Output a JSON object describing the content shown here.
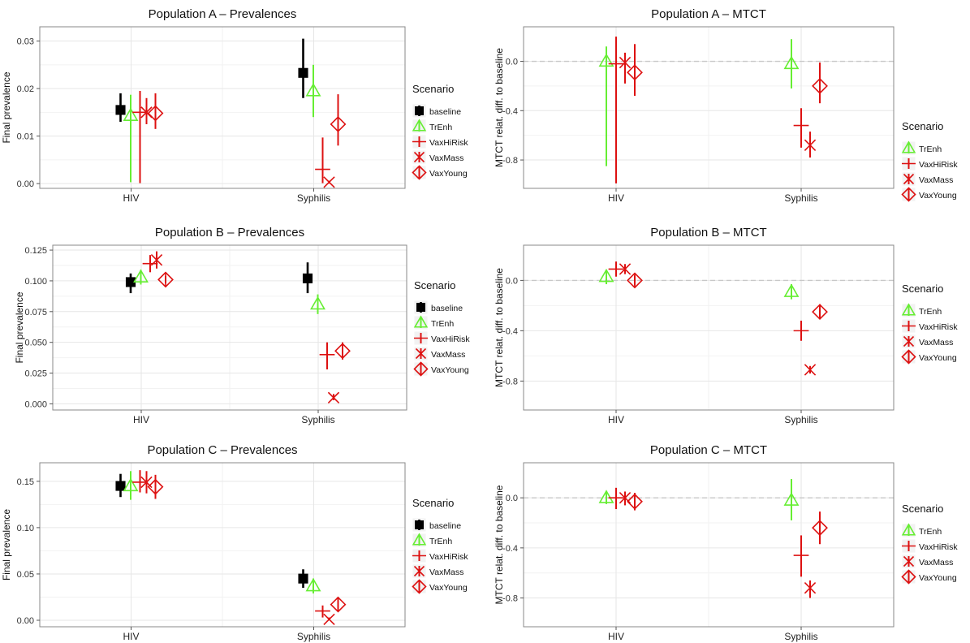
{
  "colors": {
    "baseline": "#000000",
    "TrEnh": "#66ee33",
    "VaxHiRisk": "#dd1111",
    "VaxMass": "#dd1111",
    "VaxYoung": "#dd1111",
    "grid_major": "#e6e6e6",
    "grid_minor": "#f2f2f2",
    "panel_border": "#888888",
    "ref_line": "#c8c8c8"
  },
  "chart_data": [
    {
      "type": "scatter",
      "title": "Population A  – Prevalences",
      "ylabel": "Final prevalence",
      "categories": [
        "HIV",
        "Syphilis"
      ],
      "ylim": [
        -0.001,
        0.033
      ],
      "yticks": [
        0.0,
        0.01,
        0.02,
        0.03
      ],
      "ytick_labels": [
        "0.00",
        "0.01",
        "0.02",
        "0.03"
      ],
      "ref_line": null,
      "legend": {
        "title": "Scenario",
        "items": [
          "baseline",
          "TrEnh",
          "VaxHiRisk",
          "VaxMass",
          "VaxYoung"
        ],
        "placement": "right"
      },
      "series": [
        {
          "name": "baseline",
          "values": [
            {
              "x": "HIV",
              "y": 0.0155,
              "lo": 0.013,
              "hi": 0.019
            },
            {
              "x": "Syphilis",
              "y": 0.0233,
              "lo": 0.018,
              "hi": 0.0305
            }
          ]
        },
        {
          "name": "TrEnh",
          "values": [
            {
              "x": "HIV",
              "y": 0.0143,
              "lo": 0.0003,
              "hi": 0.0187
            },
            {
              "x": "Syphilis",
              "y": 0.0195,
              "lo": 0.014,
              "hi": 0.025
            }
          ]
        },
        {
          "name": "VaxHiRisk",
          "values": [
            {
              "x": "HIV",
              "y": 0.015,
              "lo": 0.0001,
              "hi": 0.0195
            },
            {
              "x": "Syphilis",
              "y": 0.003,
              "lo": 0.0001,
              "hi": 0.0097
            }
          ]
        },
        {
          "name": "VaxMass",
          "values": [
            {
              "x": "HIV",
              "y": 0.015,
              "lo": 0.0125,
              "hi": 0.018
            },
            {
              "x": "Syphilis",
              "y": 0.0003,
              "lo": 0.0,
              "hi": 0.0006
            }
          ]
        },
        {
          "name": "VaxYoung",
          "values": [
            {
              "x": "HIV",
              "y": 0.0148,
              "lo": 0.0115,
              "hi": 0.019
            },
            {
              "x": "Syphilis",
              "y": 0.0125,
              "lo": 0.008,
              "hi": 0.0188
            }
          ]
        }
      ]
    },
    {
      "type": "scatter",
      "title": "Population A  – MTCT",
      "ylabel": "MTCT relat. diff. to baseline",
      "categories": [
        "HIV",
        "Syphilis"
      ],
      "ylim": [
        -1.03,
        0.28
      ],
      "yticks": [
        0.0,
        -0.4,
        -0.8
      ],
      "ytick_labels": [
        "0.0",
        "-0.4",
        "-0.8"
      ],
      "ref_line": 0.0,
      "legend": {
        "title": "Scenario",
        "items": [
          "TrEnh",
          "VaxHiRisk",
          "VaxMass",
          "VaxYoung"
        ],
        "placement": "right"
      },
      "series": [
        {
          "name": "TrEnh",
          "values": [
            {
              "x": "HIV",
              "y": 0.0,
              "lo": -0.85,
              "hi": 0.12
            },
            {
              "x": "Syphilis",
              "y": -0.02,
              "lo": -0.22,
              "hi": 0.18
            }
          ]
        },
        {
          "name": "VaxHiRisk",
          "values": [
            {
              "x": "HIV",
              "y": -0.02,
              "lo": -0.99,
              "hi": 0.2
            },
            {
              "x": "Syphilis",
              "y": -0.52,
              "lo": -0.7,
              "hi": -0.38
            }
          ]
        },
        {
          "name": "VaxMass",
          "values": [
            {
              "x": "HIV",
              "y": -0.01,
              "lo": -0.18,
              "hi": 0.07
            },
            {
              "x": "Syphilis",
              "y": -0.68,
              "lo": -0.78,
              "hi": -0.57
            }
          ]
        },
        {
          "name": "VaxYoung",
          "values": [
            {
              "x": "HIV",
              "y": -0.09,
              "lo": -0.28,
              "hi": 0.14
            },
            {
              "x": "Syphilis",
              "y": -0.2,
              "lo": -0.34,
              "hi": -0.01
            }
          ]
        }
      ]
    },
    {
      "type": "scatter",
      "title": "Population B  – Prevalences",
      "ylabel": "Final prevalence",
      "categories": [
        "HIV",
        "Syphilis"
      ],
      "ylim": [
        -0.005,
        0.129
      ],
      "yticks": [
        0.0,
        0.025,
        0.05,
        0.075,
        0.1,
        0.125
      ],
      "ytick_labels": [
        "0.000",
        "0.025",
        "0.050",
        "0.075",
        "0.100",
        "0.125"
      ],
      "ref_line": null,
      "legend": {
        "title": "Scenario",
        "items": [
          "baseline",
          "TrEnh",
          "VaxHiRisk",
          "VaxMass",
          "VaxYoung"
        ],
        "placement": "right"
      },
      "series": [
        {
          "name": "baseline",
          "values": [
            {
              "x": "HIV",
              "y": 0.099,
              "lo": 0.09,
              "hi": 0.106
            },
            {
              "x": "Syphilis",
              "y": 0.102,
              "lo": 0.09,
              "hi": 0.115
            }
          ]
        },
        {
          "name": "TrEnh",
          "values": [
            {
              "x": "HIV",
              "y": 0.103,
              "lo": 0.097,
              "hi": 0.109
            },
            {
              "x": "Syphilis",
              "y": 0.081,
              "lo": 0.073,
              "hi": 0.089
            }
          ]
        },
        {
          "name": "VaxHiRisk",
          "values": [
            {
              "x": "HIV",
              "y": 0.114,
              "lo": 0.107,
              "hi": 0.121
            },
            {
              "x": "Syphilis",
              "y": 0.04,
              "lo": 0.028,
              "hi": 0.05
            }
          ]
        },
        {
          "name": "VaxMass",
          "values": [
            {
              "x": "HIV",
              "y": 0.117,
              "lo": 0.11,
              "hi": 0.124
            },
            {
              "x": "Syphilis",
              "y": 0.005,
              "lo": 0.003,
              "hi": 0.008
            }
          ]
        },
        {
          "name": "VaxYoung",
          "values": [
            {
              "x": "HIV",
              "y": 0.101,
              "lo": 0.098,
              "hi": 0.104
            },
            {
              "x": "Syphilis",
              "y": 0.043,
              "lo": 0.036,
              "hi": 0.05
            }
          ]
        }
      ]
    },
    {
      "type": "scatter",
      "title": "Population B  – MTCT",
      "ylabel": "MTCT relat. diff. to baseline",
      "categories": [
        "HIV",
        "Syphilis"
      ],
      "ylim": [
        -1.03,
        0.28
      ],
      "yticks": [
        0.0,
        -0.4,
        -0.8
      ],
      "ytick_labels": [
        "0.0",
        "-0.4",
        "-0.8"
      ],
      "ref_line": 0.0,
      "legend": {
        "title": "Scenario",
        "items": [
          "TrEnh",
          "VaxHiRisk",
          "VaxMass",
          "VaxYoung"
        ],
        "placement": "right"
      },
      "series": [
        {
          "name": "TrEnh",
          "values": [
            {
              "x": "HIV",
              "y": 0.03,
              "lo": -0.03,
              "hi": 0.08
            },
            {
              "x": "Syphilis",
              "y": -0.09,
              "lo": -0.15,
              "hi": -0.03
            }
          ]
        },
        {
          "name": "VaxHiRisk",
          "values": [
            {
              "x": "HIV",
              "y": 0.09,
              "lo": 0.03,
              "hi": 0.15
            },
            {
              "x": "Syphilis",
              "y": -0.4,
              "lo": -0.48,
              "hi": -0.32
            }
          ]
        },
        {
          "name": "VaxMass",
          "values": [
            {
              "x": "HIV",
              "y": 0.09,
              "lo": 0.05,
              "hi": 0.13
            },
            {
              "x": "Syphilis",
              "y": -0.71,
              "lo": -0.74,
              "hi": -0.68
            }
          ]
        },
        {
          "name": "VaxYoung",
          "values": [
            {
              "x": "HIV",
              "y": 0.0,
              "lo": -0.04,
              "hi": 0.04
            },
            {
              "x": "Syphilis",
              "y": -0.25,
              "lo": -0.3,
              "hi": -0.19
            }
          ]
        }
      ]
    },
    {
      "type": "scatter",
      "title": "Population C  – Prevalences",
      "ylabel": "Final prevalence",
      "categories": [
        "HIV",
        "Syphilis"
      ],
      "ylim": [
        -0.007,
        0.17
      ],
      "yticks": [
        0.0,
        0.05,
        0.1,
        0.15
      ],
      "ytick_labels": [
        "0.00",
        "0.05",
        "0.10",
        "0.15"
      ],
      "ref_line": null,
      "legend": {
        "title": "Scenario",
        "items": [
          "baseline",
          "TrEnh",
          "VaxHiRisk",
          "VaxMass",
          "VaxYoung"
        ],
        "placement": "right"
      },
      "series": [
        {
          "name": "baseline",
          "values": [
            {
              "x": "HIV",
              "y": 0.145,
              "lo": 0.133,
              "hi": 0.158
            },
            {
              "x": "Syphilis",
              "y": 0.045,
              "lo": 0.035,
              "hi": 0.055
            }
          ]
        },
        {
          "name": "TrEnh",
          "values": [
            {
              "x": "HIV",
              "y": 0.145,
              "lo": 0.13,
              "hi": 0.161
            },
            {
              "x": "Syphilis",
              "y": 0.037,
              "lo": 0.029,
              "hi": 0.045
            }
          ]
        },
        {
          "name": "VaxHiRisk",
          "values": [
            {
              "x": "HIV",
              "y": 0.149,
              "lo": 0.138,
              "hi": 0.162
            },
            {
              "x": "Syphilis",
              "y": 0.01,
              "lo": 0.003,
              "hi": 0.016
            }
          ]
        },
        {
          "name": "VaxMass",
          "values": [
            {
              "x": "HIV",
              "y": 0.149,
              "lo": 0.137,
              "hi": 0.161
            },
            {
              "x": "Syphilis",
              "y": 0.001,
              "lo": 0.0,
              "hi": 0.003
            }
          ]
        },
        {
          "name": "VaxYoung",
          "values": [
            {
              "x": "HIV",
              "y": 0.144,
              "lo": 0.131,
              "hi": 0.157
            },
            {
              "x": "Syphilis",
              "y": 0.017,
              "lo": 0.011,
              "hi": 0.023
            }
          ]
        }
      ]
    },
    {
      "type": "scatter",
      "title": "Population C  – MTCT",
      "ylabel": "MTCT relat. diff. to baseline",
      "categories": [
        "HIV",
        "Syphilis"
      ],
      "ylim": [
        -1.03,
        0.28
      ],
      "yticks": [
        0.0,
        -0.4,
        -0.8
      ],
      "ytick_labels": [
        "0.0",
        "-0.4",
        "-0.8"
      ],
      "ref_line": 0.0,
      "legend": {
        "title": "Scenario",
        "items": [
          "TrEnh",
          "VaxHiRisk",
          "VaxMass",
          "VaxYoung"
        ],
        "placement": "right"
      },
      "series": [
        {
          "name": "TrEnh",
          "values": [
            {
              "x": "HIV",
              "y": 0.0,
              "lo": -0.05,
              "hi": 0.05
            },
            {
              "x": "Syphilis",
              "y": -0.02,
              "lo": -0.18,
              "hi": 0.15
            }
          ]
        },
        {
          "name": "VaxHiRisk",
          "values": [
            {
              "x": "HIV",
              "y": 0.0,
              "lo": -0.09,
              "hi": 0.08
            },
            {
              "x": "Syphilis",
              "y": -0.46,
              "lo": -0.63,
              "hi": -0.3
            }
          ]
        },
        {
          "name": "VaxMass",
          "values": [
            {
              "x": "HIV",
              "y": 0.0,
              "lo": -0.06,
              "hi": 0.05
            },
            {
              "x": "Syphilis",
              "y": -0.72,
              "lo": -0.8,
              "hi": -0.66
            }
          ]
        },
        {
          "name": "VaxYoung",
          "values": [
            {
              "x": "HIV",
              "y": -0.03,
              "lo": -0.1,
              "hi": 0.04
            },
            {
              "x": "Syphilis",
              "y": -0.24,
              "lo": -0.37,
              "hi": -0.11
            }
          ]
        }
      ]
    }
  ]
}
